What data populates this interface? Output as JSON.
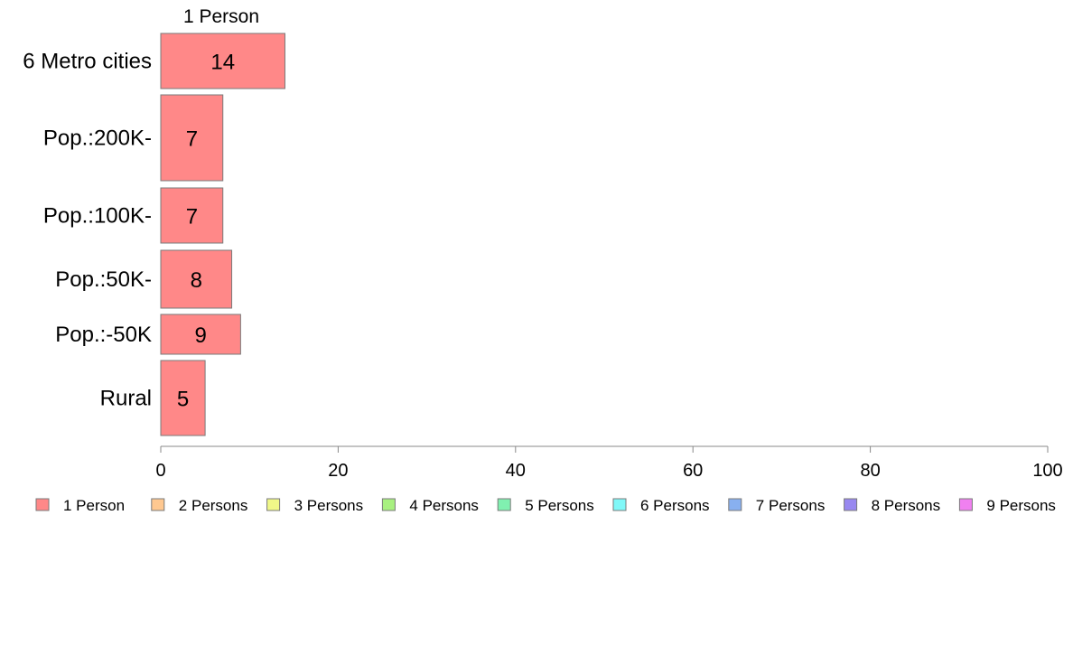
{
  "chart_data": {
    "type": "bar",
    "orientation": "horizontal",
    "stacked": true,
    "variable_width": true,
    "categories": [
      "6 Metro cities",
      "Pop.:200K-",
      "Pop.:100K-",
      "Pop.:50K-",
      "Pop.:-50K",
      "Rural"
    ],
    "series": [
      {
        "name": "1 Person",
        "values": [
          14,
          7,
          7,
          8,
          9,
          5
        ],
        "color": "#ff8888"
      }
    ],
    "bar_labels": [
      "14",
      "7",
      "7",
      "8",
      "9",
      "5"
    ],
    "series_header": "1 Person",
    "legend": [
      {
        "label": "1 Person",
        "color": "#ff8888"
      },
      {
        "label": "2 Persons",
        "color": "#ffc890"
      },
      {
        "label": "3 Persons",
        "color": "#f0f888"
      },
      {
        "label": "4 Persons",
        "color": "#a8f080"
      },
      {
        "label": "5 Persons",
        "color": "#80f0b0"
      },
      {
        "label": "6 Persons",
        "color": "#80f8f8"
      },
      {
        "label": "7 Persons",
        "color": "#88b0f0"
      },
      {
        "label": "8 Persons",
        "color": "#9888f0"
      },
      {
        "label": "9 Persons",
        "color": "#f080f0"
      }
    ],
    "legend_position": "bottom",
    "xlim": [
      0,
      100
    ],
    "xticks": [
      0,
      20,
      40,
      60,
      80,
      100
    ],
    "xlabel": "",
    "ylabel": "",
    "grid": false
  }
}
